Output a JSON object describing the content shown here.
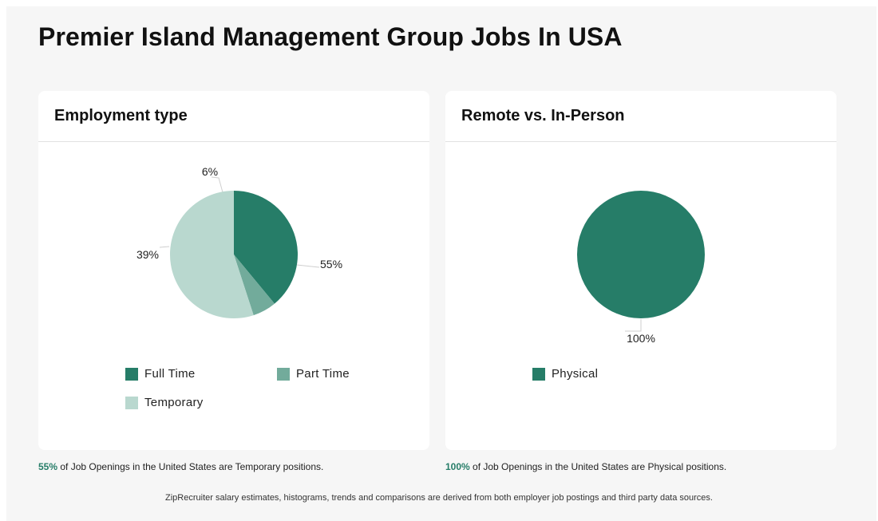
{
  "page": {
    "title": "Premier Island Management Group Jobs In USA",
    "footer": "ZipRecruiter salary estimates, histograms, trends and comparisons are derived from both employer job postings and third party data sources."
  },
  "colors": {
    "full_time": "#267d68",
    "part_time": "#72ab9b",
    "temporary": "#b9d8cf",
    "physical": "#267d68",
    "accent": "#267d68"
  },
  "employment": {
    "title": "Employment type",
    "caption_pct": "55%",
    "caption_text": " of Job Openings in the United States are Temporary positions."
  },
  "remote": {
    "title": "Remote vs. In-Person",
    "caption_pct": "100%",
    "caption_text": " of Job Openings in the United States are Physical positions."
  },
  "chart_data": [
    {
      "type": "pie",
      "title": "Employment type",
      "legend_position": "bottom",
      "slices": [
        {
          "name": "Full Time",
          "value": 39,
          "label": "39%",
          "color": "#267d68"
        },
        {
          "name": "Part Time",
          "value": 6,
          "label": "6%",
          "color": "#72ab9b"
        },
        {
          "name": "Temporary",
          "value": 55,
          "label": "55%",
          "color": "#b9d8cf"
        }
      ]
    },
    {
      "type": "pie",
      "title": "Remote vs. In-Person",
      "legend_position": "bottom",
      "slices": [
        {
          "name": "Physical",
          "value": 100,
          "label": "100%",
          "color": "#267d68"
        }
      ]
    }
  ]
}
